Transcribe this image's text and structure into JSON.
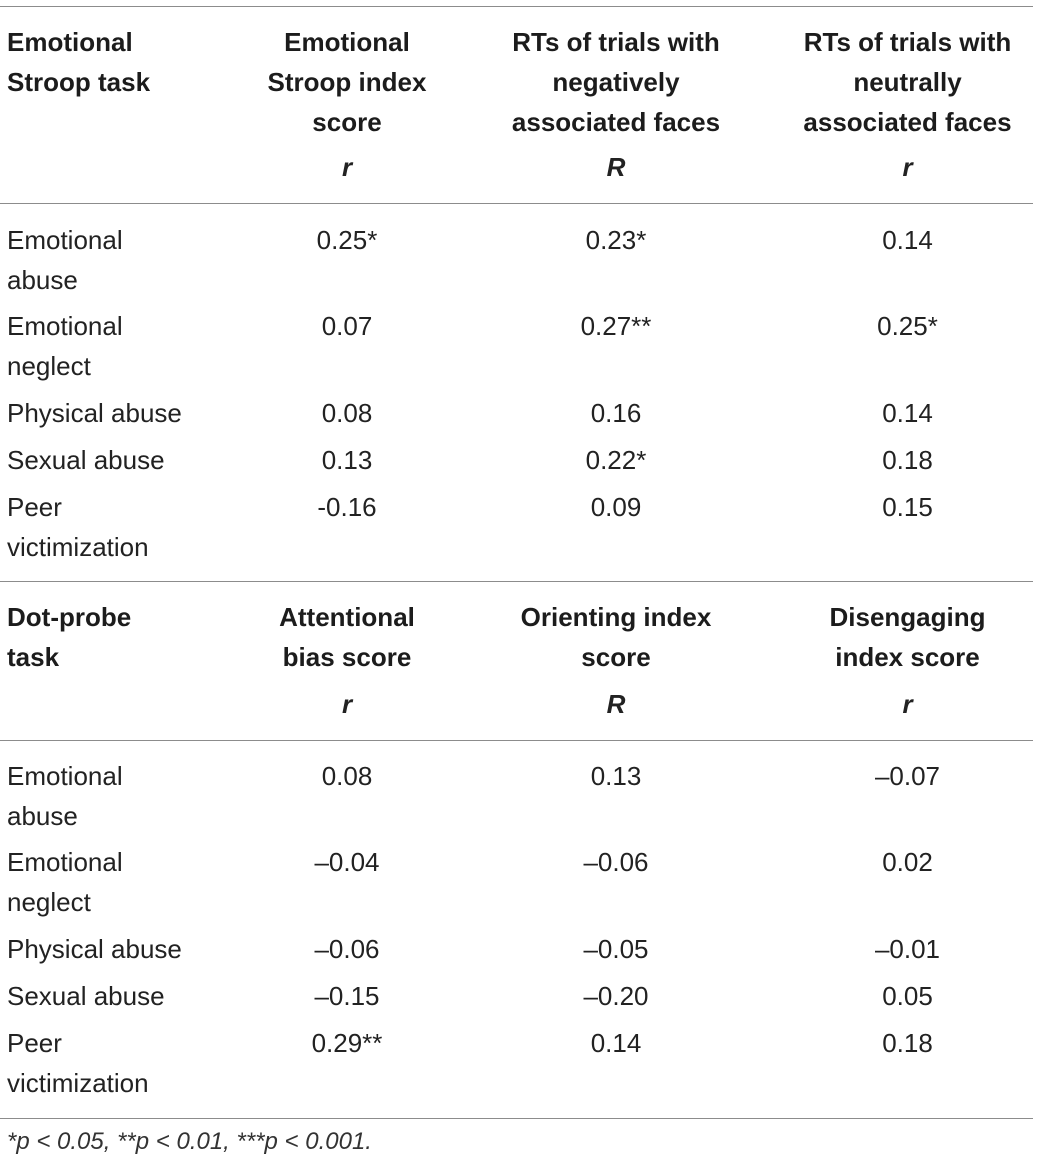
{
  "sections": [
    {
      "header": {
        "task": [
          "Emotional",
          "Stroop task"
        ],
        "columns": [
          [
            "Emotional",
            "Stroop index",
            "score"
          ],
          [
            "RTs of trials with",
            "negatively",
            "associated faces"
          ],
          [
            "RTs of trials with",
            "neutrally",
            "associated faces"
          ]
        ],
        "stats": [
          "r",
          "R",
          "r"
        ]
      },
      "rows": [
        {
          "label": [
            "Emotional",
            "abuse"
          ],
          "values": [
            "0.25*",
            "0.23*",
            "0.14"
          ]
        },
        {
          "label": [
            "Emotional",
            "neglect"
          ],
          "values": [
            "0.07",
            "0.27**",
            "0.25*"
          ]
        },
        {
          "label": [
            "Physical abuse"
          ],
          "values": [
            "0.08",
            "0.16",
            "0.14"
          ]
        },
        {
          "label": [
            "Sexual abuse"
          ],
          "values": [
            "0.13",
            "0.22*",
            "0.18"
          ]
        },
        {
          "label": [
            "Peer",
            "victimization"
          ],
          "values": [
            "-0.16",
            "0.09",
            "0.15"
          ]
        }
      ]
    },
    {
      "header": {
        "task": [
          "Dot-probe",
          "task"
        ],
        "columns": [
          [
            "Attentional",
            "bias score"
          ],
          [
            "Orienting index",
            "score"
          ],
          [
            "Disengaging",
            "index score"
          ]
        ],
        "stats": [
          "r",
          "R",
          "r"
        ]
      },
      "rows": [
        {
          "label": [
            "Emotional",
            "abuse"
          ],
          "values": [
            "0.08",
            "0.13",
            "–0.07"
          ]
        },
        {
          "label": [
            "Emotional",
            "neglect"
          ],
          "values": [
            "–0.04",
            "–0.06",
            "0.02"
          ]
        },
        {
          "label": [
            "Physical abuse"
          ],
          "values": [
            "–0.06",
            "–0.05",
            "–0.01"
          ]
        },
        {
          "label": [
            "Sexual abuse"
          ],
          "values": [
            "–0.15",
            "–0.20",
            "0.05"
          ]
        },
        {
          "label": [
            "Peer",
            "victimization"
          ],
          "values": [
            "0.29**",
            "0.14",
            "0.18"
          ]
        }
      ]
    }
  ],
  "footnote": "*p < 0.05, **p < 0.01, ***p < 0.001."
}
